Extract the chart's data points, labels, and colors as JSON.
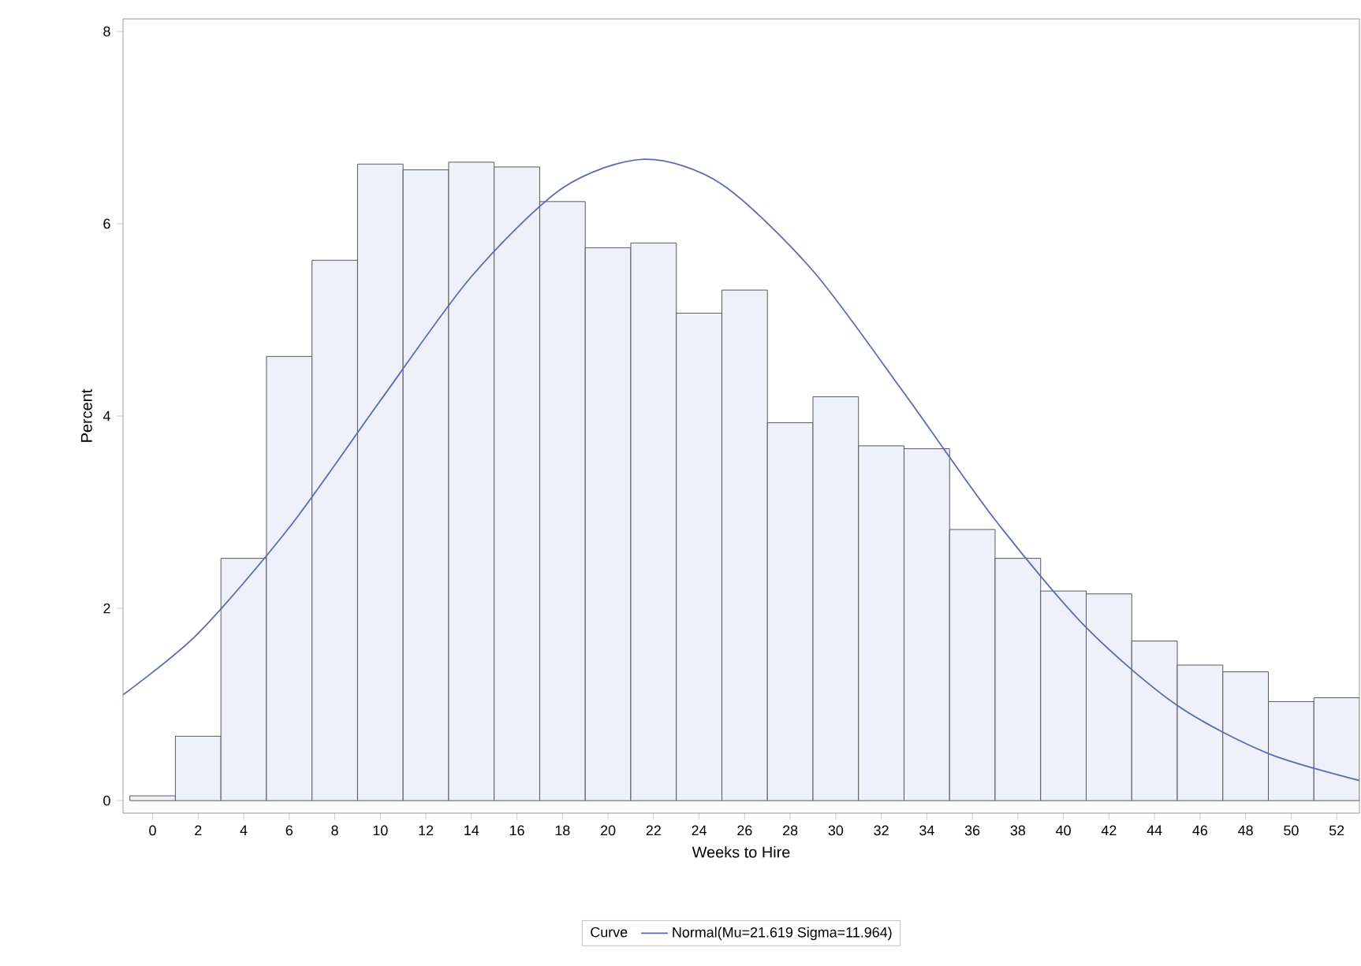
{
  "chart_data": {
    "type": "histogram",
    "xlabel": "Weeks to Hire",
    "ylabel": "Percent",
    "legend_title": "Curve",
    "legend": "bottom",
    "xlim": [
      -1.3,
      53
    ],
    "ylim": [
      -0.13,
      8.13
    ],
    "xticks": [
      0,
      2,
      4,
      6,
      8,
      10,
      12,
      14,
      16,
      18,
      20,
      22,
      24,
      26,
      28,
      30,
      32,
      34,
      36,
      38,
      40,
      42,
      44,
      46,
      48,
      50,
      52
    ],
    "yticks": [
      0,
      2,
      4,
      6,
      8
    ],
    "series": [
      {
        "color": "#eef0fa",
        "bins": [
          -1,
          1,
          3,
          5,
          7,
          9,
          11,
          13,
          15,
          17,
          19,
          21,
          23,
          25,
          27,
          29,
          31,
          33,
          35,
          37,
          39,
          41,
          43,
          45,
          47,
          49,
          51,
          53
        ],
        "values": [
          0.05,
          0.67,
          2.52,
          4.62,
          5.62,
          6.62,
          6.56,
          6.64,
          6.59,
          6.23,
          5.75,
          5.8,
          5.07,
          5.31,
          3.93,
          4.2,
          3.69,
          3.66,
          2.82,
          2.52,
          2.18,
          2.15,
          1.66,
          1.41,
          1.34,
          1.03,
          1.07
        ]
      },
      {
        "type": "line",
        "name": "Normal(Mu=21.619 Sigma=11.964)",
        "color": "#5a6bb5",
        "x": [
          -1.3,
          2,
          6,
          10,
          14,
          18,
          21.6,
          25,
          29,
          33,
          37,
          41,
          45,
          49,
          53
        ],
        "values": [
          1.1,
          1.74,
          2.84,
          4.16,
          5.45,
          6.37,
          6.67,
          6.41,
          5.51,
          4.24,
          2.92,
          1.8,
          0.99,
          0.49,
          0.21
        ]
      }
    ]
  }
}
